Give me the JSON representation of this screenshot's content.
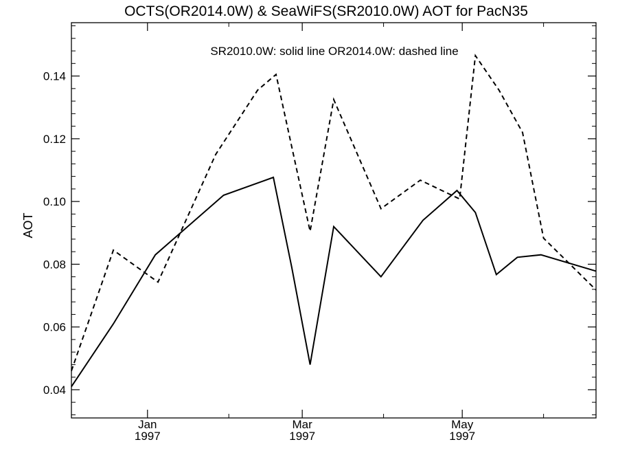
{
  "chart_data": {
    "type": "line",
    "title": "OCTS(OR2014.0W) & SeaWiFS(SR2010.0W)  AOT for PacN35",
    "legend_text": "SR2010.0W: solid line   OR2014.0W: dashed line",
    "ylabel": "AOT",
    "xlabel": "",
    "xlim": [
      "1996-12-03",
      "1997-06-21"
    ],
    "ylim": [
      0.031,
      0.157
    ],
    "y_ticks": [
      "0.04",
      "0.06",
      "0.08",
      "0.10",
      "0.12",
      "0.14"
    ],
    "x_ticks": [
      {
        "date": "1997-01-01",
        "label": "Jan",
        "year": "1997"
      },
      {
        "date": "1997-03-01",
        "label": "Mar",
        "year": "1997"
      },
      {
        "date": "1997-05-01",
        "label": "May",
        "year": "1997"
      }
    ],
    "series": [
      {
        "name": "SR2010.0W",
        "style": "solid",
        "points": [
          [
            "1996-12-03",
            0.041
          ],
          [
            "1996-12-19",
            0.061
          ],
          [
            "1997-01-04",
            0.083
          ],
          [
            "1997-01-30",
            0.102
          ],
          [
            "1997-02-18",
            0.1077
          ],
          [
            "1997-02-25",
            0.079
          ],
          [
            "1997-03-04",
            0.048
          ],
          [
            "1997-03-13",
            0.092
          ],
          [
            "1997-03-31",
            0.076
          ],
          [
            "1997-04-16",
            0.094
          ],
          [
            "1997-04-29",
            0.1035
          ],
          [
            "1997-05-06",
            0.0965
          ],
          [
            "1997-05-14",
            0.0767
          ],
          [
            "1997-05-22",
            0.0822
          ],
          [
            "1997-05-31",
            0.083
          ],
          [
            "1997-06-21",
            0.0778
          ]
        ]
      },
      {
        "name": "OR2014.0W",
        "style": "dashed",
        "points": [
          [
            "1996-12-03",
            0.046
          ],
          [
            "1996-12-19",
            0.0845
          ],
          [
            "1997-01-05",
            0.0743
          ],
          [
            "1997-01-27",
            0.115
          ],
          [
            "1997-02-12",
            0.1355
          ],
          [
            "1997-02-19",
            0.1405
          ],
          [
            "1997-03-04",
            0.0905
          ],
          [
            "1997-03-13",
            0.1325
          ],
          [
            "1997-03-31",
            0.0977
          ],
          [
            "1997-04-15",
            0.1068
          ],
          [
            "1997-04-30",
            0.1008
          ],
          [
            "1997-05-06",
            0.1465
          ],
          [
            "1997-05-15",
            0.1355
          ],
          [
            "1997-05-24",
            0.122
          ],
          [
            "1997-06-01",
            0.0883
          ],
          [
            "1997-06-21",
            0.0718
          ]
        ]
      }
    ],
    "grid": false
  }
}
